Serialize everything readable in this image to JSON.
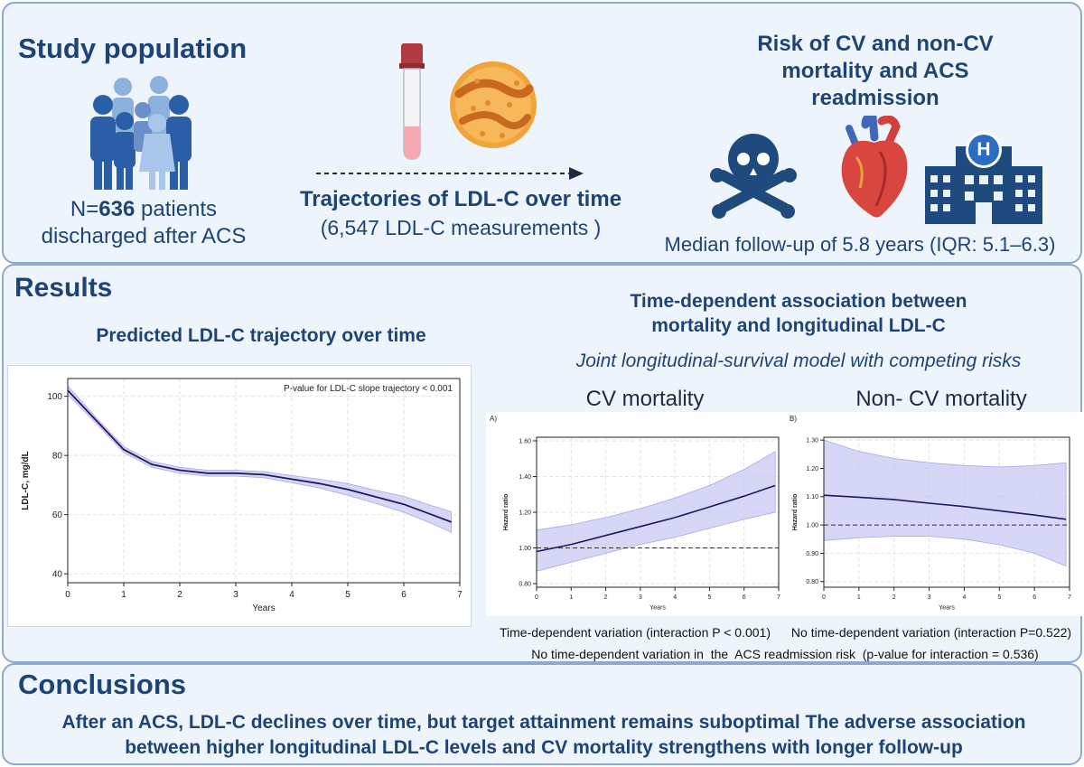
{
  "top": {
    "study_title": "Study population",
    "n_prefix": "N=",
    "n_value": "636",
    "n_suffix": " patients",
    "n_line2": "discharged after ACS",
    "traj_title": "Trajectories of LDL-C over time",
    "traj_sub": "(6,547 LDL-C measurements )",
    "risk_title_l1": "Risk of CV and non-CV",
    "risk_title_l2": "mortality and ACS",
    "risk_title_l3": "readmission",
    "followup": "Median follow-up of 5.8 years (IQR: 5.1–6.3)",
    "hospital_letter": "H",
    "icons": [
      "people-icon",
      "blood-tube-icon",
      "ldl-particle-icon",
      "skull-crossbones-icon",
      "heart-icon",
      "hospital-icon"
    ]
  },
  "results": {
    "title": "Results",
    "left_title": "Predicted LDL-C trajectory over time",
    "right_title_l1": "Time-dependent association between",
    "right_title_l2": "mortality and longitudinal LDL-C",
    "right_subtitle": "Joint longitudinal-survival model with competing risks",
    "cv_heading": "CV mortality",
    "noncv_heading": "Non- CV mortality",
    "cv_caption": "Time-dependent variation (interaction P < 0.001)",
    "noncv_caption": "No time-dependent variation (interaction P=0.522)",
    "acs_note": "No time-dependent variation in  the  ACS readmission risk  (p-value for interaction = 0.536)"
  },
  "conclusions": {
    "title": "Conclusions",
    "line1": "After an ACS, LDL-C declines over time, but target attainment remains suboptimal The adverse association",
    "line2": "between higher longitudinal LDL-C levels and CV mortality strengthens with longer follow-up"
  },
  "colors": {
    "heading": "#1e4476",
    "line": "#1f1a5e",
    "band": "#c8c8f4",
    "panel_bg": "#eef4fb",
    "border": "#8ea9cf"
  },
  "chart_data": [
    {
      "type": "line",
      "annotation": "P-value for LDL-C slope trajectory < 0.001",
      "xlabel": "Years",
      "ylabel": "LDL-C, mg/dL",
      "xlim": [
        0,
        7
      ],
      "ylim": [
        37,
        106
      ],
      "xticks": [
        0,
        1,
        2,
        3,
        4,
        5,
        6,
        7
      ],
      "yticks": [
        40,
        60,
        80,
        100
      ],
      "grid": true,
      "x": [
        0,
        0.5,
        1,
        1.5,
        2,
        2.5,
        3,
        3.5,
        4,
        4.5,
        5,
        5.5,
        6,
        6.5,
        6.85
      ],
      "y": [
        102,
        92,
        82,
        77,
        75,
        74,
        74,
        73.5,
        72,
        70.5,
        68.5,
        66,
        63.5,
        60,
        57.5
      ],
      "lower": [
        100.5,
        91,
        81,
        76,
        74,
        73,
        73,
        72.5,
        70.8,
        69,
        66.5,
        63.8,
        60.8,
        57,
        54
      ],
      "upper": [
        103.5,
        93,
        83,
        78,
        76,
        75,
        75,
        74.5,
        73.2,
        72,
        70.5,
        68.2,
        66.2,
        63,
        61
      ]
    },
    {
      "type": "line",
      "panel_label": "A)",
      "xlabel": "Years",
      "ylabel": "Hazard ratio",
      "xlim": [
        0,
        7
      ],
      "ylim": [
        0.78,
        1.62
      ],
      "xticks": [
        0,
        1,
        2,
        3,
        4,
        5,
        6,
        7
      ],
      "yticks": [
        0.8,
        1.0,
        1.2,
        1.4,
        1.6
      ],
      "ytick_labels": [
        "0.80",
        "1.00",
        "1.20",
        "1.40",
        "1.60"
      ],
      "reference_line": 1.0,
      "grid": true,
      "x": [
        0,
        1,
        2,
        3,
        4,
        5,
        6,
        6.9
      ],
      "y": [
        0.98,
        1.02,
        1.07,
        1.12,
        1.17,
        1.23,
        1.29,
        1.35
      ],
      "lower": [
        0.87,
        0.92,
        0.97,
        1.02,
        1.06,
        1.11,
        1.16,
        1.2
      ],
      "upper": [
        1.1,
        1.13,
        1.17,
        1.22,
        1.28,
        1.35,
        1.44,
        1.54
      ]
    },
    {
      "type": "line",
      "panel_label": "B)",
      "xlabel": "Years",
      "ylabel": "Hazard ratio",
      "xlim": [
        0,
        7
      ],
      "ylim": [
        0.78,
        1.31
      ],
      "xticks": [
        0,
        1,
        2,
        3,
        4,
        5,
        6,
        7
      ],
      "yticks": [
        0.8,
        0.9,
        1.0,
        1.1,
        1.2,
        1.3
      ],
      "ytick_labels": [
        "0.80",
        "0.90",
        "1.00",
        "1.10",
        "1.20",
        "1.30"
      ],
      "reference_line": 1.0,
      "grid": true,
      "x": [
        0,
        1,
        2,
        3,
        4,
        5,
        6,
        6.9
      ],
      "y": [
        1.105,
        1.098,
        1.09,
        1.077,
        1.065,
        1.05,
        1.035,
        1.02
      ],
      "lower": [
        0.945,
        0.955,
        0.96,
        0.96,
        0.95,
        0.93,
        0.9,
        0.855
      ],
      "upper": [
        1.3,
        1.26,
        1.235,
        1.22,
        1.21,
        1.205,
        1.21,
        1.22
      ]
    }
  ]
}
